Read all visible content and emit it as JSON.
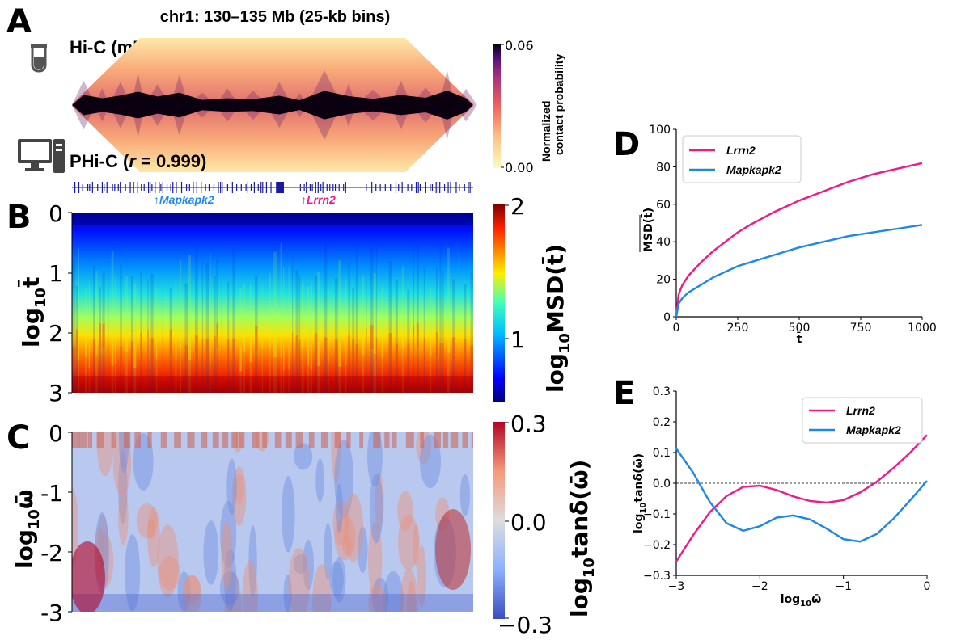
{
  "panels": {
    "a": "A",
    "b": "B",
    "c": "C",
    "d": "D",
    "e": "E"
  },
  "panel_a": {
    "title": "chr1: 130–135 Mb (25-kb bins)",
    "hic_label": "Hi-C (mESCs)",
    "phic_label_prefix": "PHi-C (",
    "phic_r": "r",
    "phic_label_suffix": " = 0.999)",
    "gene_left": "↑Mapkapk2",
    "gene_right": "↑Lrrn2",
    "colorbar": {
      "max": "0.06",
      "min": "0.00",
      "label_line1": "Normalized",
      "label_line2": "contact probability"
    },
    "colors": {
      "gene_left": "#1e88e5",
      "gene_right": "#ec1a8c",
      "gene_track": "#1a1a9e"
    }
  },
  "panel_b": {
    "ylabel_main": "log",
    "ylabel_sub": "10",
    "ylabel_var": "t̄",
    "yticks": [
      "0",
      "1",
      "2",
      "3"
    ],
    "colorbar": {
      "max": "2",
      "mid": "1",
      "label_main": "log",
      "label_sub": "10",
      "label_rest": "MSD(t̄)"
    }
  },
  "panel_c": {
    "ylabel_main": "log",
    "ylabel_sub": "10",
    "ylabel_var": "ω̄",
    "yticks": [
      "0",
      "-1",
      "-2",
      "-3"
    ],
    "colorbar": {
      "max": "0.3",
      "mid": "0.0",
      "min": "−0.3",
      "label_main": "log",
      "label_sub": "10",
      "label_rest": "tanδ(ω̄)"
    }
  },
  "chart_data": [
    {
      "panel": "D",
      "type": "line",
      "xlabel": "t̄",
      "ylabel": "MSD(t̄)",
      "xlim": [
        0,
        1000
      ],
      "ylim": [
        0,
        100
      ],
      "xticks": [
        0,
        250,
        500,
        750,
        1000
      ],
      "yticks": [
        0,
        20,
        40,
        60,
        80,
        100
      ],
      "legend_position": "top-left",
      "series": [
        {
          "name": "Lrrn2",
          "color": "#ec1a8c",
          "x": [
            0,
            10,
            25,
            50,
            100,
            150,
            200,
            250,
            300,
            400,
            500,
            600,
            700,
            800,
            900,
            1000
          ],
          "y": [
            0,
            12,
            17,
            22,
            29,
            35,
            40,
            45,
            49,
            56,
            62,
            67,
            72,
            76,
            79,
            82
          ]
        },
        {
          "name": "Mapkapk2",
          "color": "#1e88e5",
          "x": [
            0,
            10,
            25,
            50,
            100,
            150,
            200,
            250,
            300,
            400,
            500,
            600,
            700,
            800,
            900,
            1000
          ],
          "y": [
            0,
            7,
            10,
            13,
            17,
            21,
            24,
            27,
            29,
            33,
            37,
            40,
            43,
            45,
            47,
            49
          ]
        }
      ]
    },
    {
      "panel": "E",
      "type": "line",
      "xlabel": "log10ω̄",
      "ylabel": "log10tanδ(ω̄)",
      "xlim": [
        -3,
        0
      ],
      "ylim": [
        -0.3,
        0.3
      ],
      "xticks": [
        "−3",
        "−2",
        "−1",
        "0"
      ],
      "yticks": [
        "−0.3",
        "−0.2",
        "−0.1",
        "0.0",
        "0.1",
        "0.2",
        "0.3"
      ],
      "reference_line_y": 0.0,
      "legend_position": "top-right",
      "series": [
        {
          "name": "Lrrn2",
          "color": "#ec1a8c",
          "x": [
            -3,
            -2.8,
            -2.6,
            -2.4,
            -2.2,
            -2.0,
            -1.8,
            -1.6,
            -1.4,
            -1.2,
            -1.0,
            -0.8,
            -0.6,
            -0.4,
            -0.2,
            0
          ],
          "y": [
            -0.255,
            -0.17,
            -0.095,
            -0.042,
            -0.012,
            -0.008,
            -0.022,
            -0.043,
            -0.058,
            -0.063,
            -0.055,
            -0.03,
            0.005,
            0.05,
            0.1,
            0.157
          ]
        },
        {
          "name": "Mapkapk2",
          "color": "#1e88e5",
          "x": [
            -3,
            -2.8,
            -2.6,
            -2.4,
            -2.2,
            -2.0,
            -1.8,
            -1.6,
            -1.4,
            -1.2,
            -1.0,
            -0.8,
            -0.6,
            -0.4,
            -0.2,
            0
          ],
          "y": [
            0.113,
            0.035,
            -0.06,
            -0.13,
            -0.155,
            -0.14,
            -0.112,
            -0.105,
            -0.118,
            -0.148,
            -0.182,
            -0.19,
            -0.165,
            -0.115,
            -0.055,
            0.008
          ]
        }
      ]
    }
  ]
}
